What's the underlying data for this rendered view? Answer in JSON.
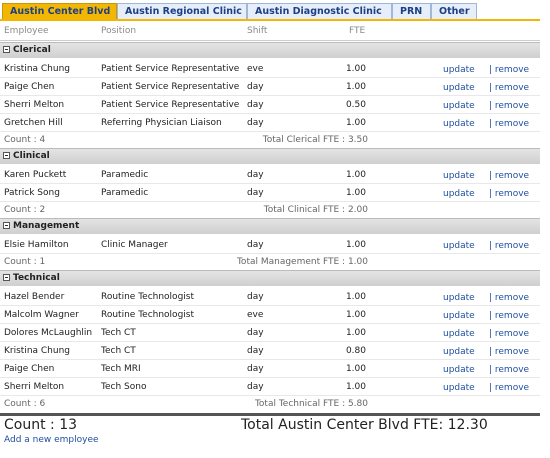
{
  "tabs": [
    "Austin Center Blvd",
    "Austin Regional Clinic",
    "Austin Diagnostic Clinic",
    "PRN",
    "Other"
  ],
  "columns": [
    "Employee",
    "Position",
    "Shift",
    "FTE"
  ],
  "row_actions": [
    "update",
    "| remove"
  ],
  "groups": [
    {
      "name": "Clerical",
      "rows": [
        {
          "employee": "Kristina Chung",
          "position": "Patient Service Representative",
          "shift": "eve",
          "fte": "1.00"
        },
        {
          "employee": "Paige Chen",
          "position": "Patient Service Representative",
          "shift": "day",
          "fte": "1.00"
        },
        {
          "employee": "Sherri Melton",
          "position": "Patient Service Representative",
          "shift": "day",
          "fte": "0.50"
        },
        {
          "employee": "Gretchen Hill",
          "position": "Referring Physician Liaison",
          "shift": "day",
          "fte": "1.00"
        }
      ],
      "count": "Count : 4",
      "total": "Total Clerical FTE : 3.50"
    },
    {
      "name": "Clinical",
      "rows": [
        {
          "employee": "Karen Puckett",
          "position": "Paramedic",
          "shift": "day",
          "fte": "1.00"
        },
        {
          "employee": "Patrick Song",
          "position": "Paramedic",
          "shift": "day",
          "fte": "1.00"
        }
      ],
      "count": "Count : 2",
      "total": "Total Clinical FTE : 2.00"
    },
    {
      "name": "Management",
      "rows": [
        {
          "employee": "Elsie Hamilton",
          "position": "Clinic Manager",
          "shift": "day",
          "fte": "1.00"
        }
      ],
      "count": "Count : 1",
      "total": "Total Management FTE : 1.00"
    },
    {
      "name": "Technical",
      "rows": [
        {
          "employee": "Hazel Bender",
          "position": "Routine Technologist",
          "shift": "day",
          "fte": "1.00"
        },
        {
          "employee": "Malcolm Wagner",
          "position": "Routine Technologist",
          "shift": "eve",
          "fte": "1.00"
        },
        {
          "employee": "Dolores McLaughlin",
          "position": "Tech CT",
          "shift": "day",
          "fte": "1.00"
        },
        {
          "employee": "Kristina Chung",
          "position": "Tech CT",
          "shift": "day",
          "fte": "0.80"
        },
        {
          "employee": "Paige Chen",
          "position": "Tech MRI",
          "shift": "day",
          "fte": "1.00"
        },
        {
          "employee": "Sherri Melton",
          "position": "Tech Sono",
          "shift": "day",
          "fte": "1.00"
        }
      ],
      "count": "Count : 6",
      "total": "Total Technical FTE : 5.80"
    }
  ],
  "footer": {
    "count": "Count : 13",
    "total": "Total Austin Center Blvd FTE: 12.30",
    "add_link": "Add a new employee"
  }
}
